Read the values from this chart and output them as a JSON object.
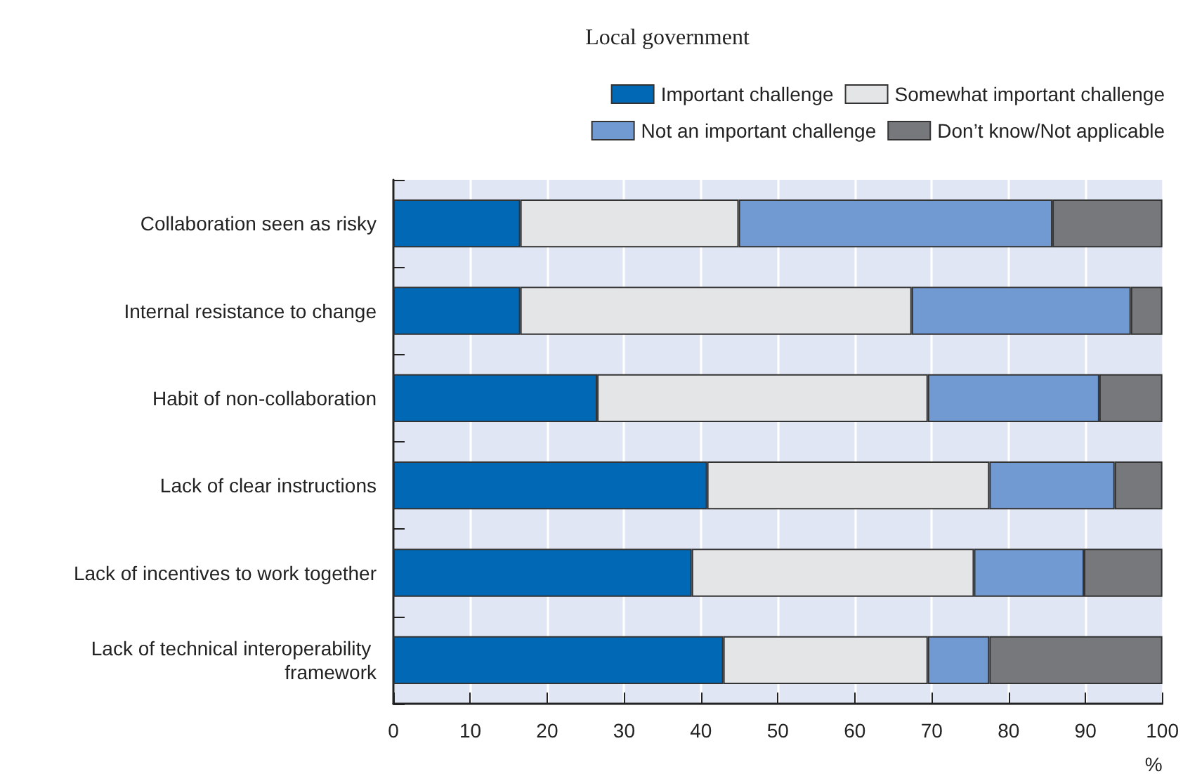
{
  "chart_data": {
    "type": "bar",
    "orientation": "horizontal",
    "stacked": true,
    "title": "Local government",
    "xlabel": "%",
    "categories": [
      "Collaboration seen as risky",
      "Internal resistance to change",
      "Habit of non-collaboration",
      "Lack of clear instructions",
      "Lack of incentives to work together",
      "Lack of technical interoperability framework"
    ],
    "series": [
      {
        "name": "Important challenge",
        "color": "#0068b5",
        "values": [
          16.5,
          16.5,
          26.5,
          40.8,
          38.8,
          42.9
        ]
      },
      {
        "name": "Somewhat important challenge",
        "color": "#e4e5e7",
        "values": [
          28.4,
          50.9,
          43.0,
          36.7,
          36.7,
          26.6
        ]
      },
      {
        "name": "Not an important challenge",
        "color": "#7199d2",
        "values": [
          40.8,
          28.5,
          22.3,
          16.3,
          14.3,
          8.0
        ]
      },
      {
        "name": "Don’t know/Not applicable",
        "color": "#77787b",
        "values": [
          14.3,
          4.1,
          8.2,
          6.2,
          10.2,
          22.5
        ]
      }
    ],
    "xlim": [
      0,
      100
    ],
    "xticks": [
      0,
      10,
      20,
      30,
      40,
      50,
      60,
      70,
      80,
      90,
      100
    ],
    "grid": "x",
    "legend": "top right"
  }
}
